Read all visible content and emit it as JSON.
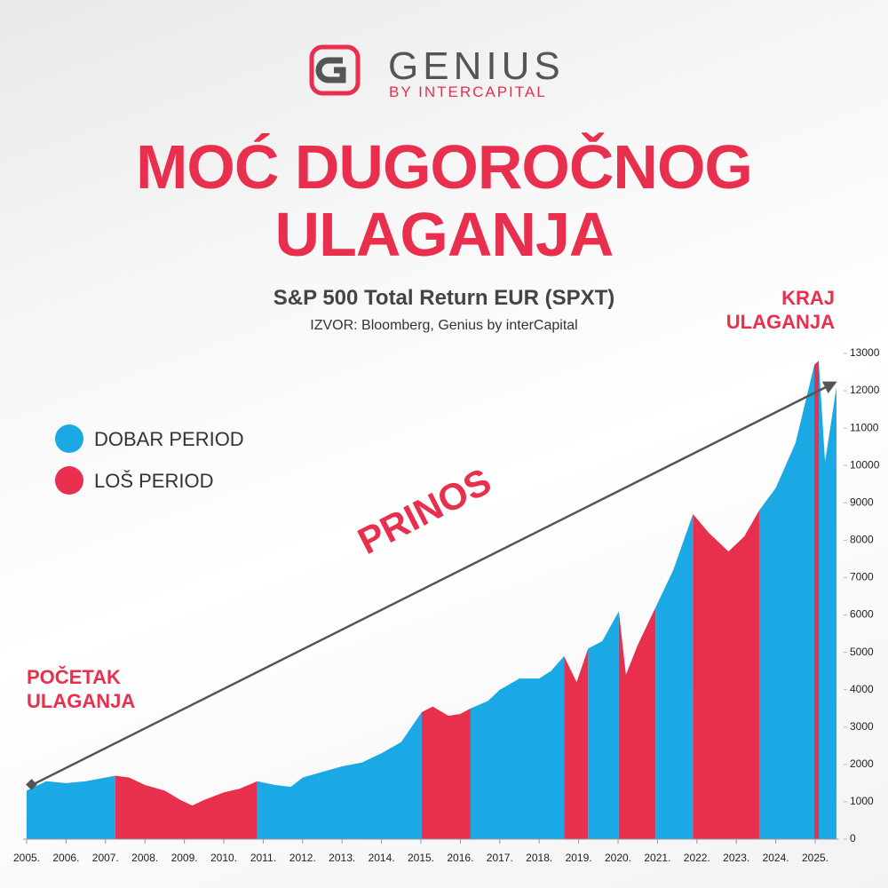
{
  "header": {
    "brand": "GENIUS",
    "tagline": "BY INTERCAPITAL"
  },
  "chart_data": {
    "type": "area",
    "title": "MOĆ DUGOROČNOG ULAGANJA",
    "subtitle": "S&P 500 Total Return EUR (SPXT)",
    "source": "IZVOR: Bloomberg, Genius by interCapital",
    "annotations": [
      "PRINOS",
      "POČETAK ULAGANJA",
      "KRAJ ULAGANJA"
    ],
    "x": [
      2005.0,
      2005.5,
      2006.0,
      2006.5,
      2007.0,
      2007.25,
      2007.6,
      2008.0,
      2008.5,
      2008.9,
      2009.2,
      2009.5,
      2010.0,
      2010.4,
      2010.85,
      2011.3,
      2011.7,
      2012.0,
      2012.5,
      2013.0,
      2013.5,
      2014.0,
      2014.5,
      2015.02,
      2015.3,
      2015.7,
      2016.0,
      2016.26,
      2016.7,
      2017.0,
      2017.5,
      2018.0,
      2018.3,
      2018.63,
      2018.95,
      2019.24,
      2019.6,
      2020.02,
      2020.2,
      2020.5,
      2020.95,
      2021.4,
      2021.9,
      2022.3,
      2022.8,
      2023.2,
      2023.58,
      2024.0,
      2024.5,
      2024.98,
      2025.09,
      2025.25,
      2025.54
    ],
    "series": [
      {
        "name": "DOBAR PERIOD",
        "color": "#1aa9e4",
        "values": [
          1300,
          1550,
          1500,
          1550,
          1650,
          1700,
          null,
          null,
          null,
          null,
          null,
          null,
          null,
          null,
          1550,
          1450,
          1400,
          1650,
          1800,
          1950,
          2050,
          2300,
          2600,
          3400,
          null,
          null,
          null,
          3500,
          3700,
          4000,
          4300,
          4300,
          4500,
          4900,
          null,
          5100,
          5300,
          6100,
          null,
          null,
          6200,
          7200,
          8700,
          null,
          null,
          null,
          8800,
          9400,
          10600,
          12700,
          12800,
          10100,
          12100
        ]
      },
      {
        "name": "LOŠ PERIOD",
        "color": "#e8304e",
        "values": [
          null,
          null,
          null,
          null,
          null,
          1700,
          1650,
          1450,
          1300,
          1050,
          900,
          1050,
          1250,
          1350,
          1550,
          null,
          null,
          null,
          null,
          null,
          null,
          null,
          null,
          3400,
          3550,
          3300,
          3350,
          3500,
          null,
          null,
          null,
          null,
          null,
          4900,
          4200,
          5100,
          null,
          6100,
          4400,
          5200,
          6200,
          null,
          8700,
          8200,
          7700,
          8100,
          8800,
          null,
          null,
          12700,
          12800,
          null,
          null
        ]
      }
    ],
    "xlim": [
      2005,
      2025.6
    ],
    "xticks": [
      {
        "value": 2005,
        "label": "2005."
      },
      {
        "value": 2006,
        "label": "2006."
      },
      {
        "value": 2007,
        "label": "2007."
      },
      {
        "value": 2008,
        "label": "2008."
      },
      {
        "value": 2009,
        "label": "2009."
      },
      {
        "value": 2010,
        "label": "2010."
      },
      {
        "value": 2011,
        "label": "2011."
      },
      {
        "value": 2012,
        "label": "2012."
      },
      {
        "value": 2013,
        "label": "2013."
      },
      {
        "value": 2014,
        "label": "2014."
      },
      {
        "value": 2015,
        "label": "2015."
      },
      {
        "value": 2016,
        "label": "2016."
      },
      {
        "value": 2017,
        "label": "2017."
      },
      {
        "value": 2018,
        "label": "2018."
      },
      {
        "value": 2019,
        "label": "2019."
      },
      {
        "value": 2020,
        "label": "2020."
      },
      {
        "value": 2021,
        "label": "2021."
      },
      {
        "value": 2022,
        "label": "2022."
      },
      {
        "value": 2023,
        "label": "2023."
      },
      {
        "value": 2024,
        "label": "2024."
      },
      {
        "value": 2025,
        "label": "2025."
      }
    ],
    "ylim": [
      0,
      13000
    ],
    "yticks": [
      0,
      1000,
      2000,
      3000,
      4000,
      5000,
      6000,
      7000,
      8000,
      9000,
      10000,
      11000,
      12000,
      13000
    ]
  }
}
